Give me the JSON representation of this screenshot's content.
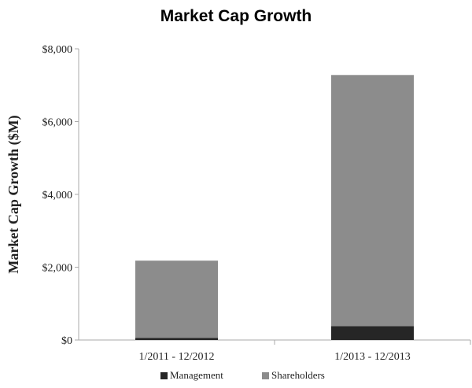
{
  "chart_data": {
    "type": "bar",
    "stacked": true,
    "title": "Market Cap Growth",
    "xlabel": "",
    "ylabel": "Market Cap Growth ($M)",
    "ylim": [
      0,
      8000
    ],
    "yticks": [
      0,
      2000,
      4000,
      6000,
      8000
    ],
    "ytick_labels": [
      "$0",
      "$2,000",
      "$4,000",
      "$6,000",
      "$8,000"
    ],
    "categories": [
      "1/2011 - 12/2012",
      "1/2013 - 12/2013"
    ],
    "series": [
      {
        "name": "Management",
        "color": "#262626",
        "values": [
          60,
          380
        ]
      },
      {
        "name": "Shareholders",
        "color": "#8c8c8c",
        "values": [
          2120,
          6900
        ]
      }
    ],
    "grid": false,
    "legend_position": "bottom"
  }
}
